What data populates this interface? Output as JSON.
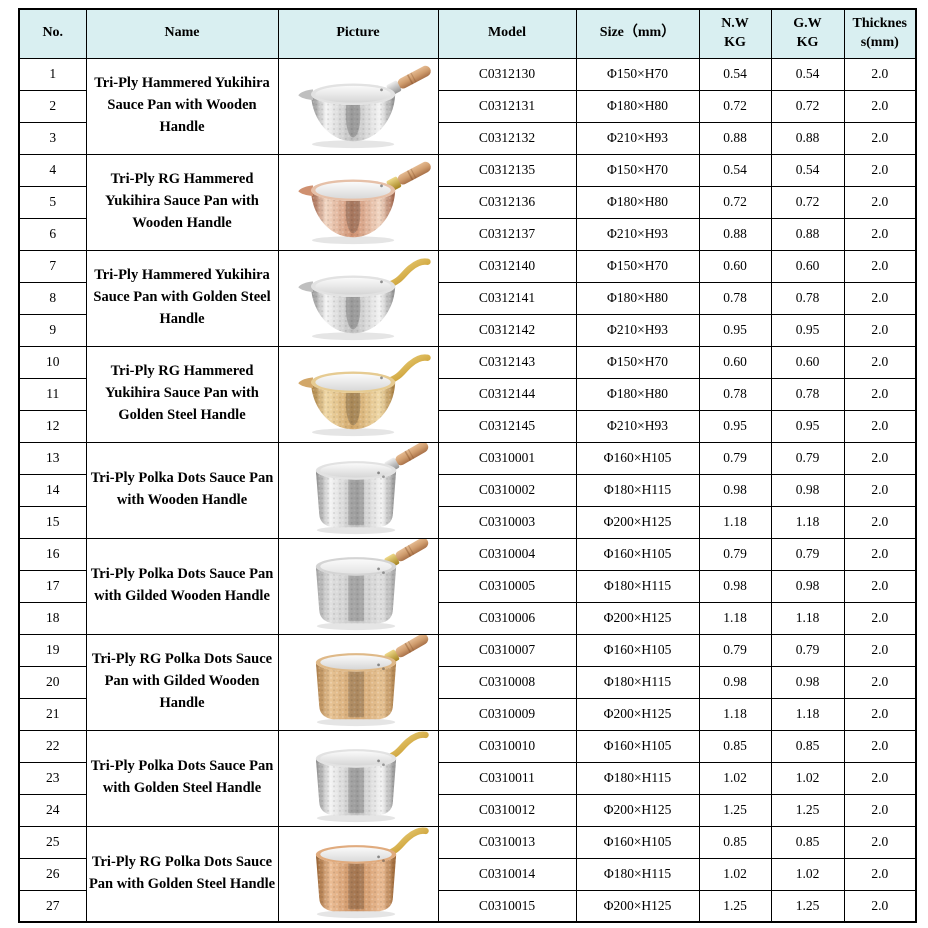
{
  "table": {
    "header": {
      "no": "No.",
      "name": "Name",
      "picture": "Picture",
      "model": "Model",
      "size": "Size（mm）",
      "nw_line1": "N.W",
      "nw_line2": "KG",
      "gw_line1": "G.W",
      "gw_line2": "KG",
      "thickness_line1": "Thicknes",
      "thickness_line2": "s(mm)"
    },
    "groups": [
      {
        "name": "Tri-Ply Hammered Yukihira Sauce Pan with Wooden Handle",
        "pan": {
          "icon": "yukihira-pan-silver-wooden-handle-image",
          "shape": "yukihira",
          "body": "silver",
          "handle": "wood",
          "ferrule": "silver"
        },
        "rows": [
          {
            "no": "1",
            "model": "C0312130",
            "size": "Φ150×H70",
            "nw": "0.54",
            "gw": "0.54",
            "thickness": "2.0"
          },
          {
            "no": "2",
            "model": "C0312131",
            "size": "Φ180×H80",
            "nw": "0.72",
            "gw": "0.72",
            "thickness": "2.0"
          },
          {
            "no": "3",
            "model": "C0312132",
            "size": "Φ210×H93",
            "nw": "0.88",
            "gw": "0.88",
            "thickness": "2.0"
          }
        ]
      },
      {
        "name": "Tri-Ply RG Hammered Yukihira Sauce Pan with Wooden Handle",
        "pan": {
          "icon": "yukihira-pan-rosegold-wooden-handle-image",
          "shape": "yukihira",
          "body": "rosegold",
          "handle": "wood",
          "ferrule": "gold"
        },
        "rows": [
          {
            "no": "4",
            "model": "C0312135",
            "size": "Φ150×H70",
            "nw": "0.54",
            "gw": "0.54",
            "thickness": "2.0"
          },
          {
            "no": "5",
            "model": "C0312136",
            "size": "Φ180×H80",
            "nw": "0.72",
            "gw": "0.72",
            "thickness": "2.0"
          },
          {
            "no": "6",
            "model": "C0312137",
            "size": "Φ210×H93",
            "nw": "0.88",
            "gw": "0.88",
            "thickness": "2.0"
          }
        ]
      },
      {
        "name": "Tri-Ply Hammered Yukihira Sauce Pan with Golden Steel Handle",
        "pan": {
          "icon": "yukihira-pan-silver-golden-steel-handle-image",
          "shape": "yukihira",
          "body": "silver",
          "handle": "goldsteel"
        },
        "rows": [
          {
            "no": "7",
            "model": "C0312140",
            "size": "Φ150×H70",
            "nw": "0.60",
            "gw": "0.60",
            "thickness": "2.0"
          },
          {
            "no": "8",
            "model": "C0312141",
            "size": "Φ180×H80",
            "nw": "0.78",
            "gw": "0.78",
            "thickness": "2.0"
          },
          {
            "no": "9",
            "model": "C0312142",
            "size": "Φ210×H93",
            "nw": "0.95",
            "gw": "0.95",
            "thickness": "2.0"
          }
        ]
      },
      {
        "name": "Tri-Ply RG Hammered Yukihira Sauce Pan with Golden Steel Handle",
        "pan": {
          "icon": "yukihira-pan-gold-golden-steel-handle-image",
          "shape": "yukihira",
          "body": "gold",
          "handle": "goldsteel"
        },
        "rows": [
          {
            "no": "10",
            "model": "C0312143",
            "size": "Φ150×H70",
            "nw": "0.60",
            "gw": "0.60",
            "thickness": "2.0"
          },
          {
            "no": "11",
            "model": "C0312144",
            "size": "Φ180×H80",
            "nw": "0.78",
            "gw": "0.78",
            "thickness": "2.0"
          },
          {
            "no": "12",
            "model": "C0312145",
            "size": "Φ210×H93",
            "nw": "0.95",
            "gw": "0.95",
            "thickness": "2.0"
          }
        ]
      },
      {
        "name": "Tri-Ply Polka Dots Sauce Pan with Wooden Handle",
        "pan": {
          "icon": "polka-dots-pan-silver-wooden-handle-image",
          "shape": "pot",
          "body": "silver",
          "handle": "wood",
          "ferrule": "silver"
        },
        "rows": [
          {
            "no": "13",
            "model": "C0310001",
            "size": "Φ160×H105",
            "nw": "0.79",
            "gw": "0.79",
            "thickness": "2.0"
          },
          {
            "no": "14",
            "model": "C0310002",
            "size": "Φ180×H115",
            "nw": "0.98",
            "gw": "0.98",
            "thickness": "2.0"
          },
          {
            "no": "15",
            "model": "C0310003",
            "size": "Φ200×H125",
            "nw": "1.18",
            "gw": "1.18",
            "thickness": "2.0"
          }
        ]
      },
      {
        "name": "Tri-Ply Polka Dots Sauce Pan with Gilded Wooden Handle",
        "pan": {
          "icon": "polka-dots-pan-matte-gilded-wooden-handle-image",
          "shape": "pot",
          "body": "matte",
          "handle": "wood",
          "ferrule": "gold"
        },
        "rows": [
          {
            "no": "16",
            "model": "C0310004",
            "size": "Φ160×H105",
            "nw": "0.79",
            "gw": "0.79",
            "thickness": "2.0"
          },
          {
            "no": "17",
            "model": "C0310005",
            "size": "Φ180×H115",
            "nw": "0.98",
            "gw": "0.98",
            "thickness": "2.0"
          },
          {
            "no": "18",
            "model": "C0310006",
            "size": "Φ200×H125",
            "nw": "1.18",
            "gw": "1.18",
            "thickness": "2.0"
          }
        ]
      },
      {
        "name": "Tri-Ply RG Polka Dots Sauce Pan with Gilded Wooden Handle",
        "pan": {
          "icon": "polka-dots-pan-tan-gilded-wooden-handle-image",
          "shape": "pot",
          "body": "tan",
          "handle": "wood",
          "ferrule": "gold"
        },
        "rows": [
          {
            "no": "19",
            "model": "C0310007",
            "size": "Φ160×H105",
            "nw": "0.79",
            "gw": "0.79",
            "thickness": "2.0"
          },
          {
            "no": "20",
            "model": "C0310008",
            "size": "Φ180×H115",
            "nw": "0.98",
            "gw": "0.98",
            "thickness": "2.0"
          },
          {
            "no": "21",
            "model": "C0310009",
            "size": "Φ200×H125",
            "nw": "1.18",
            "gw": "1.18",
            "thickness": "2.0"
          }
        ]
      },
      {
        "name": "Tri-Ply Polka Dots Sauce Pan with Golden Steel Handle",
        "pan": {
          "icon": "polka-dots-pan-silver-golden-steel-handle-image",
          "shape": "pot",
          "body": "silver",
          "handle": "goldsteel"
        },
        "rows": [
          {
            "no": "22",
            "model": "C0310010",
            "size": "Φ160×H105",
            "nw": "0.85",
            "gw": "0.85",
            "thickness": "2.0"
          },
          {
            "no": "23",
            "model": "C0310011",
            "size": "Φ180×H115",
            "nw": "1.02",
            "gw": "1.02",
            "thickness": "2.0"
          },
          {
            "no": "24",
            "model": "C0310012",
            "size": "Φ200×H125",
            "nw": "1.25",
            "gw": "1.25",
            "thickness": "2.0"
          }
        ]
      },
      {
        "name": "Tri-Ply RG Polka Dots Sauce Pan with Golden Steel Handle",
        "pan": {
          "icon": "polka-dots-pan-copper-golden-steel-handle-image",
          "shape": "pot",
          "body": "copper",
          "handle": "goldsteel"
        },
        "rows": [
          {
            "no": "25",
            "model": "C0310013",
            "size": "Φ160×H105",
            "nw": "0.85",
            "gw": "0.85",
            "thickness": "2.0"
          },
          {
            "no": "26",
            "model": "C0310014",
            "size": "Φ180×H115",
            "nw": "1.02",
            "gw": "1.02",
            "thickness": "2.0"
          },
          {
            "no": "27",
            "model": "C0310015",
            "size": "Φ200×H125",
            "nw": "1.25",
            "gw": "1.25",
            "thickness": "2.0"
          }
        ]
      }
    ]
  },
  "colors": {
    "header_bg": "#d9eff1",
    "border": "#000000",
    "text": "#000000",
    "pan_palettes": {
      "silver": {
        "hi": "#f4f4f4",
        "mid": "#bfbfbf",
        "lo": "#8d8d8d",
        "rim": "#e2e2e2",
        "inner": "#d6d6d6"
      },
      "rosegold": {
        "hi": "#f2d7c4",
        "mid": "#cf9070",
        "lo": "#9e6046",
        "rim": "#e6c0a8",
        "inner": "#d9d9d9"
      },
      "gold": {
        "hi": "#f0d9a8",
        "mid": "#d2a769",
        "lo": "#a57a3c",
        "rim": "#e6cb92",
        "inner": "#d9d9d9"
      },
      "matte": {
        "hi": "#e0e0e0",
        "mid": "#c8c8c8",
        "lo": "#a2a2a2",
        "rim": "#d4d4d4",
        "inner": "#e4e4e4"
      },
      "tan": {
        "hi": "#e7c394",
        "mid": "#d3a672",
        "lo": "#ab7d48",
        "rim": "#dfb988",
        "inner": "#d6d6d6"
      },
      "copper": {
        "hi": "#ecbe96",
        "mid": "#c98e5e",
        "lo": "#96602f",
        "rim": "#e0ab7e",
        "inner": "#dadada"
      },
      "wood": {
        "hi": "#e5bb92",
        "mid": "#d09d6e",
        "lo": "#a87149"
      },
      "goldsteel": {
        "hi": "#efd98b",
        "mid": "#d4ac47",
        "lo": "#9c7a1c"
      },
      "ferrule_silver": {
        "hi": "#f0f0f0",
        "lo": "#949494"
      },
      "ferrule_gold": {
        "hi": "#eed98a",
        "lo": "#a5821f"
      }
    }
  }
}
